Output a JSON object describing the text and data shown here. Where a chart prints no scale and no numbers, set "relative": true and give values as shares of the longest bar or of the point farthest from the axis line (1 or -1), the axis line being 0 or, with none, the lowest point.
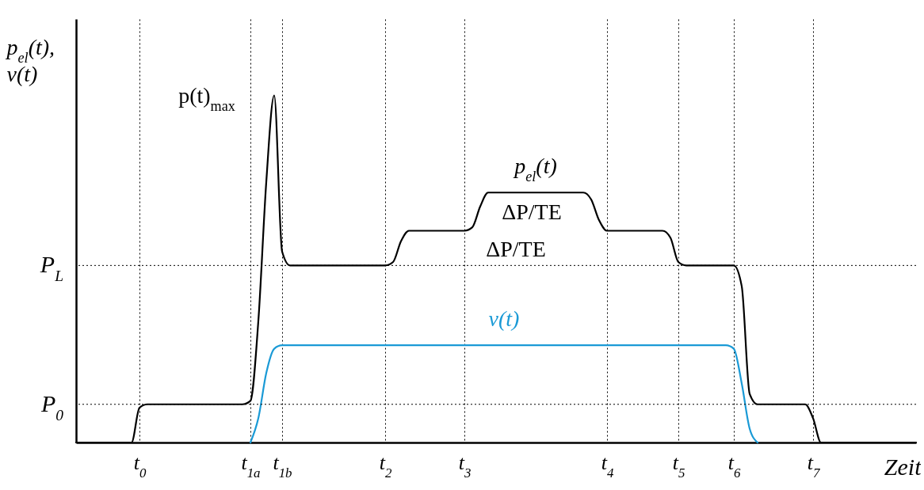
{
  "chart_data": {
    "type": "line",
    "relative": true,
    "xlabel": "Zeit",
    "ylabel": "p$_{el}$(t),\nv(t)",
    "categories": [
      null,
      null,
      null,
      null,
      null,
      null,
      null,
      null,
      "t$_{0}$",
      null,
      null,
      null,
      null,
      null,
      null,
      null,
      null,
      null,
      null,
      null,
      null,
      null,
      "t$_{1a}$",
      null,
      null,
      null,
      "t$_{1b}$",
      null,
      null,
      null,
      null,
      null,
      null,
      null,
      null,
      null,
      null,
      null,
      null,
      "t$_{2}$",
      null,
      null,
      null,
      null,
      null,
      null,
      null,
      null,
      null,
      "t$_{3}$",
      null,
      null,
      null,
      null,
      null,
      null,
      null,
      null,
      null,
      null,
      null,
      null,
      null,
      null,
      null,
      null,
      null,
      "t$_{4}$",
      null,
      null,
      null,
      null,
      null,
      null,
      null,
      null,
      "t$_{5}$",
      null,
      null,
      null,
      null,
      null,
      null,
      "t$_{6}$",
      null,
      null,
      null,
      null,
      null,
      null,
      null,
      null,
      null,
      "t$_{7}$",
      null,
      null,
      null,
      null,
      null,
      null,
      null,
      null,
      null,
      null,
      null,
      null,
      null
    ],
    "grid": "x",
    "line_style": "solid",
    "series": [
      {
        "name": "p$_{el}$(t)",
        "color": "#000000",
        "values": [
          0,
          0,
          0,
          0,
          0,
          0,
          0,
          0,
          0.1,
          0.11,
          0.11,
          0.11,
          0.11,
          0.11,
          0.11,
          0.11,
          0.11,
          0.11,
          0.11,
          0.11,
          0.11,
          0.11,
          0.12,
          0.35,
          0.75,
          1,
          0.55,
          0.51,
          0.51,
          0.51,
          0.51,
          0.51,
          0.51,
          0.51,
          0.51,
          0.51,
          0.51,
          0.51,
          0.51,
          0.51,
          0.52,
          0.58,
          0.61,
          0.61,
          0.61,
          0.61,
          0.61,
          0.61,
          0.61,
          0.61,
          0.62,
          0.68,
          0.72,
          0.72,
          0.72,
          0.72,
          0.72,
          0.72,
          0.72,
          0.72,
          0.72,
          0.72,
          0.72,
          0.72,
          0.72,
          0.7,
          0.64,
          0.61,
          0.61,
          0.61,
          0.61,
          0.61,
          0.61,
          0.61,
          0.61,
          0.59,
          0.52,
          0.51,
          0.51,
          0.51,
          0.51,
          0.51,
          0.51,
          0.51,
          0.45,
          0.14,
          0.11,
          0.11,
          0.11,
          0.11,
          0.11,
          0.11,
          0.11,
          0.07,
          0,
          0,
          0,
          0,
          0,
          0,
          0,
          0,
          0,
          0,
          0,
          0,
          0
        ]
      },
      {
        "name": "v(t)",
        "color": "#1a9ad6",
        "values": [
          null,
          null,
          null,
          null,
          null,
          null,
          null,
          null,
          null,
          null,
          null,
          null,
          null,
          null,
          null,
          null,
          null,
          null,
          null,
          null,
          null,
          null,
          0,
          0.07,
          0.2,
          0.27,
          0.28,
          0.28,
          0.28,
          0.28,
          0.28,
          0.28,
          0.28,
          0.28,
          0.28,
          0.28,
          0.28,
          0.28,
          0.28,
          0.28,
          0.28,
          0.28,
          0.28,
          0.28,
          0.28,
          0.28,
          0.28,
          0.28,
          0.28,
          0.28,
          0.28,
          0.28,
          0.28,
          0.28,
          0.28,
          0.28,
          0.28,
          0.28,
          0.28,
          0.28,
          0.28,
          0.28,
          0.28,
          0.28,
          0.28,
          0.28,
          0.28,
          0.28,
          0.28,
          0.28,
          0.28,
          0.28,
          0.28,
          0.28,
          0.28,
          0.28,
          0.28,
          0.28,
          0.28,
          0.28,
          0.28,
          0.28,
          0.28,
          0.27,
          0.17,
          0.04,
          0,
          null,
          null,
          null,
          null,
          null,
          null,
          null,
          null,
          null,
          null,
          null,
          null,
          null,
          null,
          null,
          null,
          null,
          null,
          null,
          null
        ]
      }
    ],
    "ref_lines": [
      {
        "axis": "y",
        "value": 0.11,
        "label": "P$_{0}$",
        "line_style": "dotted",
        "color": "#000000"
      },
      {
        "axis": "y",
        "value": 0.51,
        "label": "P$_{L}$",
        "line_style": "dotted",
        "color": "#000000"
      }
    ],
    "annotations": [
      "p(t)$_{max}$",
      "ΔP/TE",
      "ΔP/TE"
    ]
  }
}
